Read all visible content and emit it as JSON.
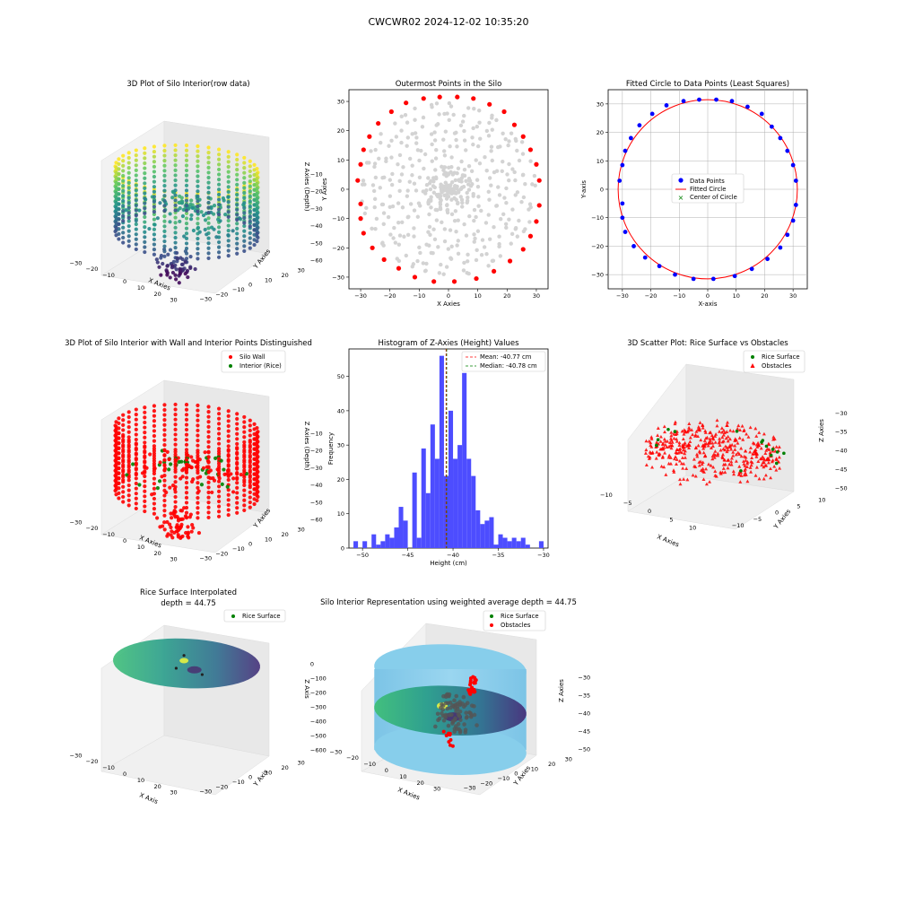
{
  "figure": {
    "suptitle": "CWCWR02 2024-12-02 10:35:20"
  },
  "colors": {
    "wall_red": "#ff0000",
    "rice_green": "#008000",
    "data_blue": "#0000ff",
    "gray_points": "#d3d3d3",
    "hist_blue": "#4d4dff",
    "cylinder": "#87ceeb",
    "pane_gray": "#f2f2f2"
  },
  "chart_data": [
    {
      "id": "plot1",
      "type": "scatter",
      "projection": "3d",
      "title": "3D Plot of Silo Interior(row data)",
      "xlabel": "X Axies",
      "ylabel": "Y Axies",
      "zlabel": "Z Axies (Depth)",
      "x_ticks": [
        "−30",
        "−20",
        "−10",
        "0",
        "10",
        "20",
        "30"
      ],
      "y_ticks": [
        "−30",
        "−20",
        "−10",
        "0",
        "10",
        "20",
        "30"
      ],
      "z_ticks": [
        "−10",
        "−20",
        "−30",
        "−40",
        "−50",
        "−60"
      ],
      "xlim": [
        -32,
        32
      ],
      "ylim": [
        -32,
        32
      ],
      "zlim": [
        -62,
        -8
      ],
      "colormap": "viridis",
      "description_values": {
        "wall_radius": 31,
        "wall_z_range": [
          -48,
          -10
        ],
        "fallen_cluster_z": [
          -60,
          -45
        ]
      }
    },
    {
      "id": "plot2",
      "type": "scatter",
      "title": "Outermost Points in the Silo",
      "xlabel": "X Axies",
      "ylabel": "Y Axies",
      "x_ticks": [
        "−30",
        "−20",
        "−10",
        "0",
        "10",
        "20",
        "30"
      ],
      "y_ticks": [
        "30",
        "20",
        "10",
        "0",
        "−10",
        "−20",
        "−30"
      ],
      "xlim": [
        -34,
        34
      ],
      "ylim": [
        -34,
        34
      ],
      "outermost_points": [
        [
          -31,
          3
        ],
        [
          -30,
          8.5
        ],
        [
          -29,
          13.5
        ],
        [
          -27,
          18
        ],
        [
          -24,
          22.5
        ],
        [
          -19.5,
          26.5
        ],
        [
          -14.5,
          29.5
        ],
        [
          -8.5,
          31
        ],
        [
          -3,
          31.5
        ],
        [
          3,
          31.5
        ],
        [
          8.5,
          31
        ],
        [
          14,
          29
        ],
        [
          19,
          26.5
        ],
        [
          22.5,
          22
        ],
        [
          25.5,
          18
        ],
        [
          28,
          13.5
        ],
        [
          30,
          8.5
        ],
        [
          31,
          3
        ],
        [
          31,
          -5.5
        ],
        [
          30,
          -11
        ],
        [
          28,
          -16
        ],
        [
          25.5,
          -20.5
        ],
        [
          21,
          -24.5
        ],
        [
          15.5,
          -28
        ],
        [
          9.5,
          -30.5
        ],
        [
          2,
          -31.5
        ],
        [
          -5,
          -31.5
        ],
        [
          -11.5,
          -30
        ],
        [
          -17,
          -27
        ],
        [
          -22,
          -24
        ],
        [
          -26,
          -20
        ],
        [
          -29,
          -15
        ],
        [
          -30,
          -10
        ],
        [
          -30,
          -5
        ]
      ]
    },
    {
      "id": "plot3",
      "type": "scatter",
      "title": "Fitted Circle to Data Points (Least Squares)",
      "xlabel": "X-axis",
      "ylabel": "Y-axis",
      "x_ticks": [
        "−30",
        "−20",
        "−10",
        "0",
        "10",
        "20",
        "30"
      ],
      "y_ticks": [
        "30",
        "20",
        "10",
        "0",
        "−10",
        "−20",
        "−30"
      ],
      "xlim": [
        -35,
        35
      ],
      "ylim": [
        -35,
        35
      ],
      "legend": [
        "Data Points",
        "Fitted Circle",
        "Center of Circle"
      ],
      "center": [
        0,
        0
      ],
      "radius": 31.5,
      "data_points": [
        [
          -31,
          3
        ],
        [
          -30,
          8.5
        ],
        [
          -29,
          13.5
        ],
        [
          -27,
          18
        ],
        [
          -24,
          22.5
        ],
        [
          -19.5,
          26.5
        ],
        [
          -14.5,
          29.5
        ],
        [
          -8.5,
          31
        ],
        [
          -3,
          31.5
        ],
        [
          3,
          31.5
        ],
        [
          8.5,
          31
        ],
        [
          14,
          29
        ],
        [
          19,
          26.5
        ],
        [
          22.5,
          22
        ],
        [
          25.5,
          18
        ],
        [
          28,
          13.5
        ],
        [
          30,
          8.5
        ],
        [
          31,
          3
        ],
        [
          31,
          -5.5
        ],
        [
          30,
          -11
        ],
        [
          28,
          -16
        ],
        [
          25.5,
          -20.5
        ],
        [
          21,
          -24.5
        ],
        [
          15.5,
          -28
        ],
        [
          9.5,
          -30.5
        ],
        [
          2,
          -31.5
        ],
        [
          -5,
          -31.5
        ],
        [
          -11.5,
          -30
        ],
        [
          -17,
          -27
        ],
        [
          -22,
          -24
        ],
        [
          -26,
          -20
        ],
        [
          -29,
          -15
        ],
        [
          -30,
          -10
        ],
        [
          -30,
          -5
        ]
      ]
    },
    {
      "id": "plot4",
      "type": "scatter",
      "projection": "3d",
      "title": "3D Plot of Silo Interior with Wall and Interior Points Distinguished",
      "xlabel": "X Axies",
      "ylabel": "Y Axies",
      "zlabel": "Z Axies (Depth)",
      "x_ticks": [
        "−30",
        "−20",
        "−10",
        "0",
        "10",
        "20",
        "30"
      ],
      "y_ticks": [
        "−30",
        "−20",
        "−10",
        "0",
        "10",
        "20",
        "30"
      ],
      "z_ticks": [
        "−10",
        "−20",
        "−30",
        "−40",
        "−50",
        "−60"
      ],
      "legend": [
        "Silo Wall",
        "Interior (Rice)"
      ]
    },
    {
      "id": "plot5",
      "type": "bar",
      "title": "Histogram of Z-Axies (Height) Values",
      "xlabel": "Height (cm)",
      "ylabel": "Frequency",
      "x_ticks": [
        "−50",
        "−45",
        "−40",
        "−35",
        "−30"
      ],
      "y_ticks": [
        "0",
        "10",
        "20",
        "30",
        "40",
        "50"
      ],
      "xlim": [
        -51.5,
        -29.5
      ],
      "ylim": [
        0,
        58
      ],
      "mean": -40.77,
      "median": -40.78,
      "legend": [
        "Mean: -40.77 cm",
        "Median: -40.78 cm"
      ],
      "bin_start": -51,
      "bin_width": 0.5,
      "values": [
        2,
        0,
        2,
        0,
        4,
        1,
        2,
        4,
        3,
        6,
        12,
        8,
        0,
        22,
        3,
        29,
        16,
        36,
        26,
        56,
        21,
        40,
        26,
        30,
        51,
        26,
        21,
        11,
        7,
        8,
        9,
        1,
        4,
        3,
        2,
        3,
        2,
        3,
        1,
        0,
        0,
        2
      ]
    },
    {
      "id": "plot6",
      "type": "scatter",
      "projection": "3d",
      "title": "3D Scatter Plot: Rice Surface vs Obstacles",
      "xlabel": "X Axies",
      "ylabel": "Y Axies",
      "zlabel": "Z Axies",
      "x_ticks": [
        "−10",
        "−5",
        "0",
        "5",
        "10"
      ],
      "y_ticks": [
        "−10",
        "−5",
        "0",
        "5",
        "10"
      ],
      "z_ticks": [
        "−30",
        "−35",
        "−40",
        "−45",
        "−50"
      ],
      "legend": [
        "Rice Surface",
        "Obstacles"
      ]
    },
    {
      "id": "plot7",
      "type": "surface",
      "projection": "3d",
      "title": "Rice Surface Interpolated",
      "subtitle": "depth = 44.75",
      "xlabel": "X Axis",
      "ylabel": "Y Axis",
      "zlabel": "Z Axis",
      "x_ticks": [
        "−30",
        "−20",
        "−10",
        "0",
        "10",
        "20",
        "30"
      ],
      "y_ticks": [
        "−30",
        "−20",
        "−10",
        "0",
        "10",
        "20",
        "30"
      ],
      "z_ticks": [
        "0",
        "−100",
        "−200",
        "−300",
        "−400",
        "−500",
        "−600"
      ],
      "legend": [
        "Rice Surface"
      ],
      "depth": 44.75
    },
    {
      "id": "plot8",
      "type": "surface",
      "projection": "3d",
      "title": "Silo Interior Representation using weighted average depth = 44.75",
      "xlabel": "X Axies",
      "ylabel": "Y Axies",
      "zlabel": "Z Axies",
      "x_ticks": [
        "−30",
        "−20",
        "−10",
        "0",
        "10",
        "20",
        "30"
      ],
      "y_ticks": [
        "−30",
        "−20",
        "−10",
        "0",
        "10",
        "20",
        "30"
      ],
      "z_ticks": [
        "−30",
        "−35",
        "−40",
        "−45",
        "−50"
      ],
      "legend": [
        "Rice Surface",
        "Obstacles"
      ],
      "depth": 44.75
    }
  ]
}
